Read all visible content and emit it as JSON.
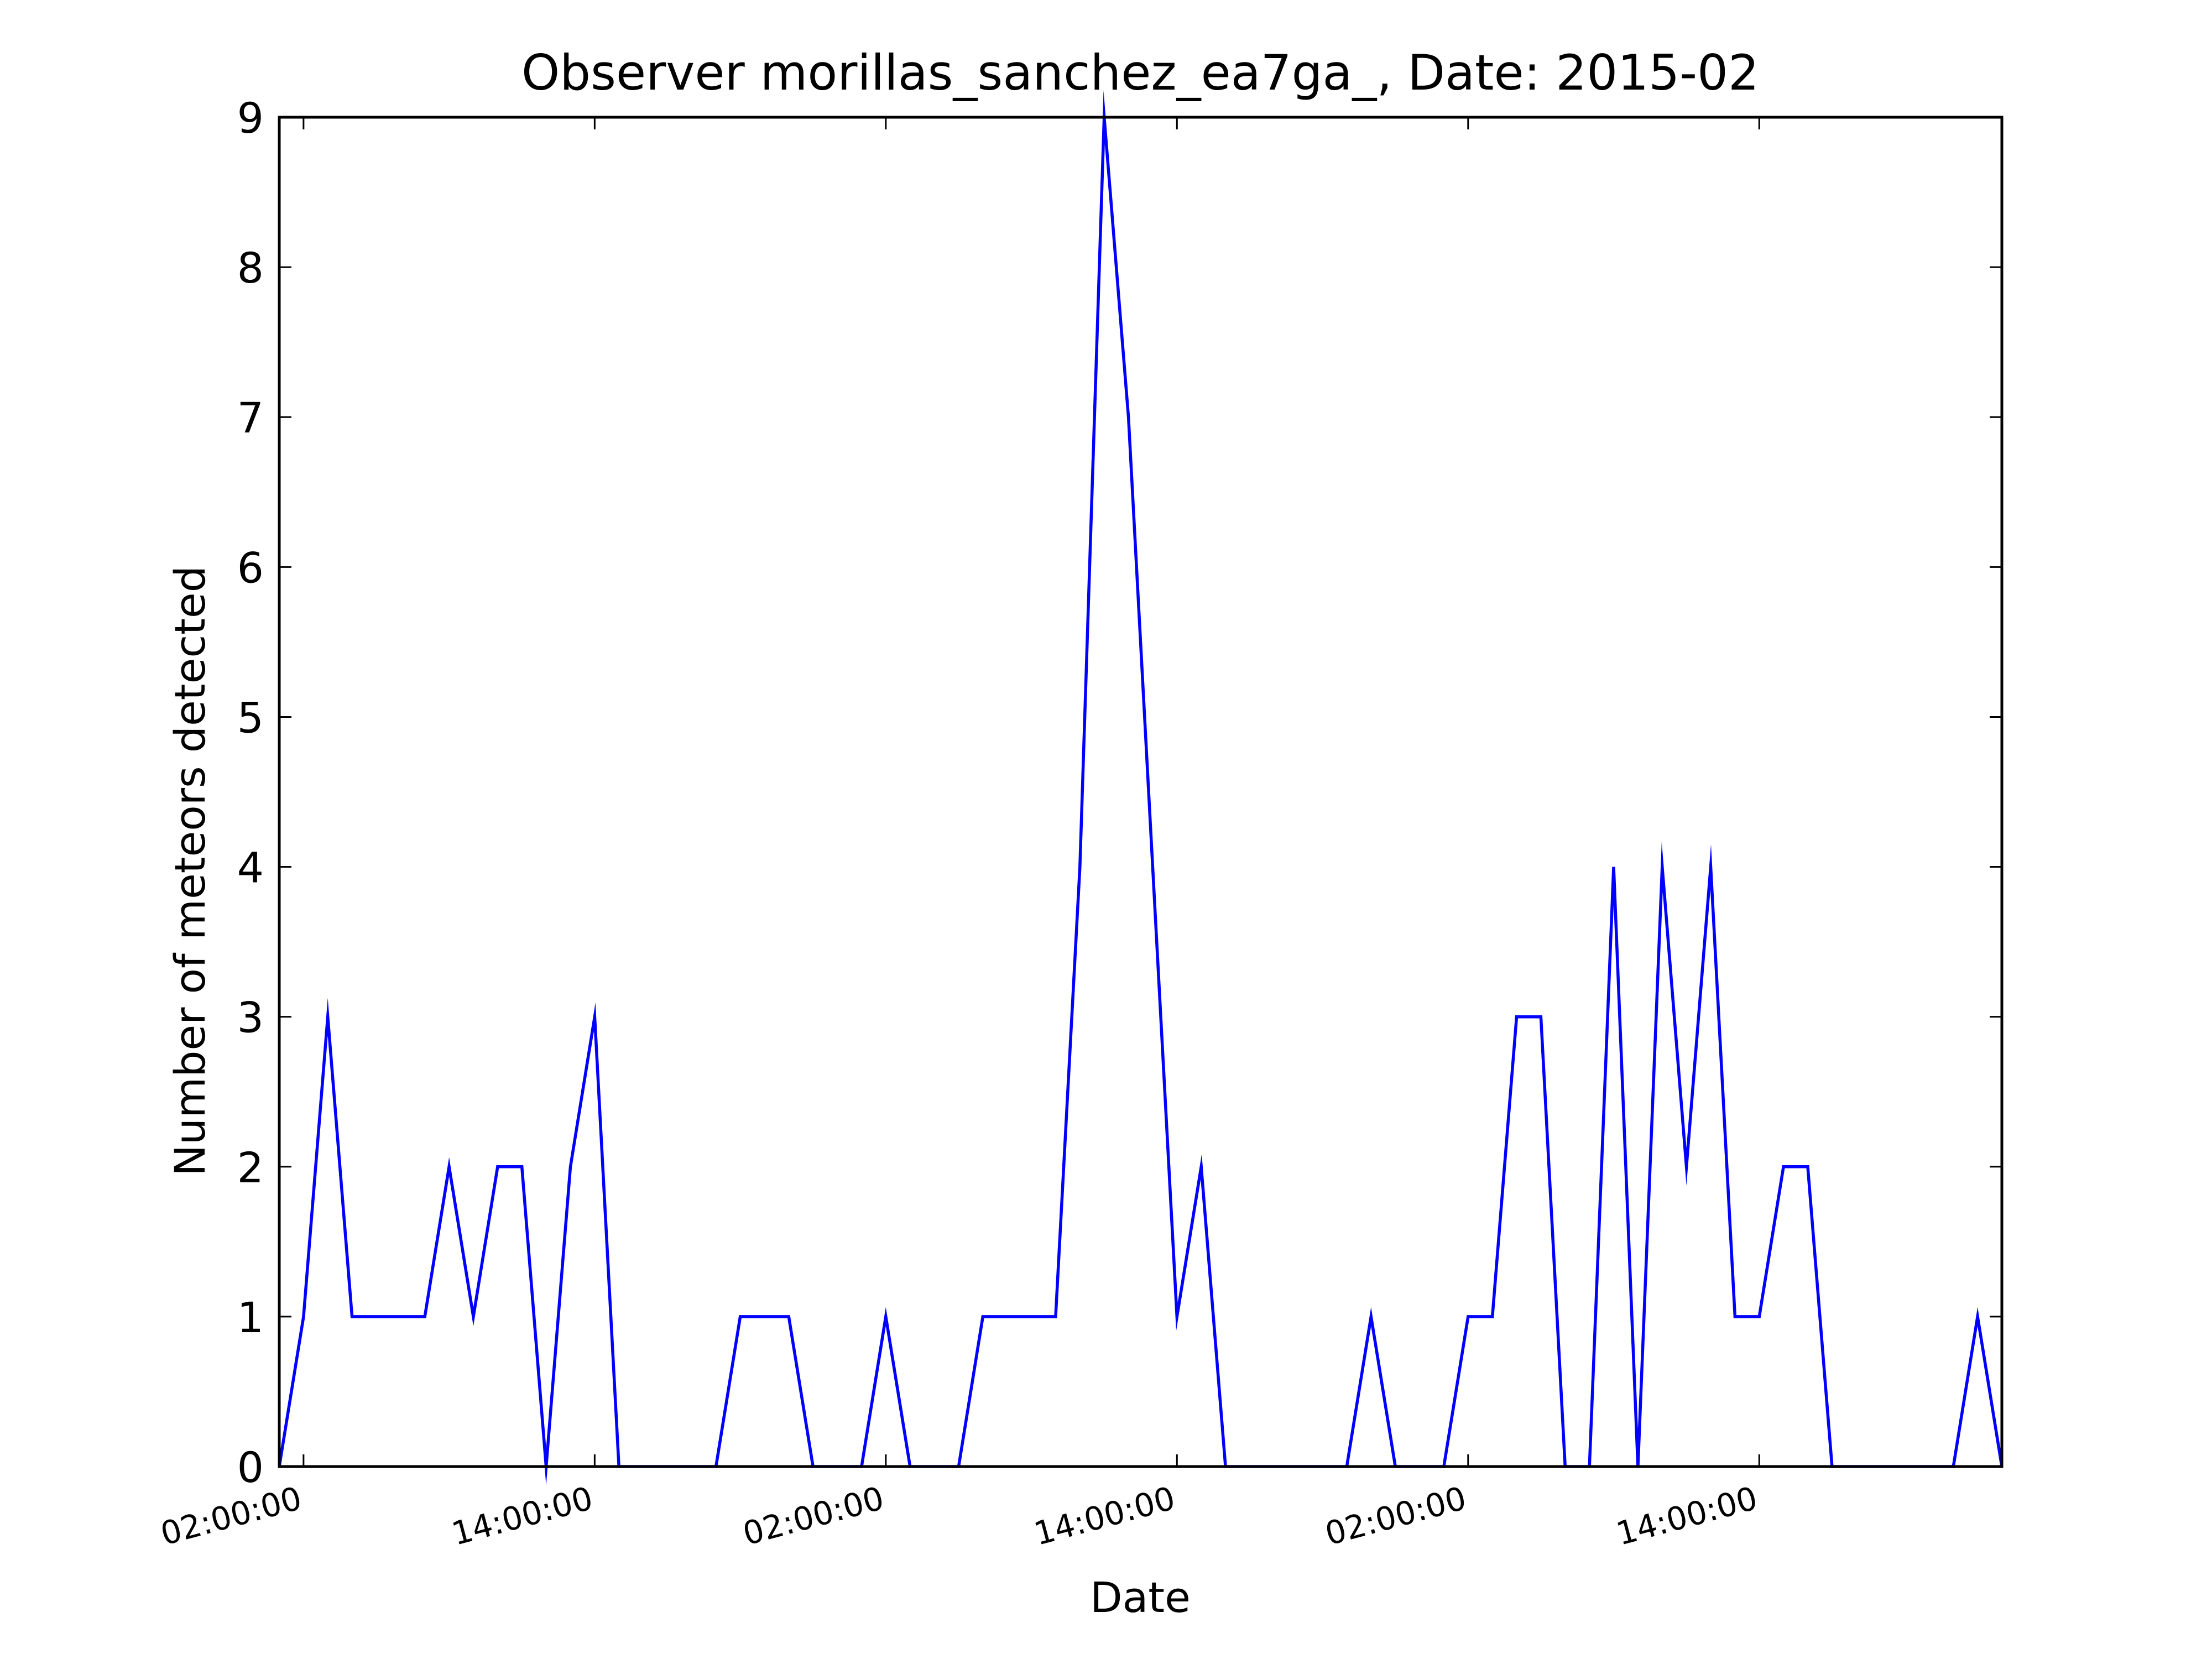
{
  "chart_data": {
    "type": "line",
    "title": "Observer morillas_sanchez_ea7ga_, Date: 2015-02",
    "xlabel": "Date",
    "ylabel": "Number of meteors detected",
    "series": [
      {
        "color": "#0000ff",
        "points": [
          [
            "2015-02-01 01:00",
            0
          ],
          [
            "2015-02-01 02:00",
            1
          ],
          [
            "2015-02-01 03:00",
            3
          ],
          [
            "2015-02-01 04:00",
            1
          ],
          [
            "2015-02-01 05:00",
            1
          ],
          [
            "2015-02-01 06:00",
            1
          ],
          [
            "2015-02-01 07:00",
            1
          ],
          [
            "2015-02-01 08:00",
            2
          ],
          [
            "2015-02-01 09:00",
            1
          ],
          [
            "2015-02-01 10:00",
            2
          ],
          [
            "2015-02-01 11:00",
            2
          ],
          [
            "2015-02-01 12:00",
            0
          ],
          [
            "2015-02-01 13:00",
            2
          ],
          [
            "2015-02-01 14:00",
            3
          ],
          [
            "2015-02-01 15:00",
            0
          ],
          [
            "2015-02-01 16:00",
            0
          ],
          [
            "2015-02-01 17:00",
            0
          ],
          [
            "2015-02-01 18:00",
            0
          ],
          [
            "2015-02-01 19:00",
            0
          ],
          [
            "2015-02-01 20:00",
            1
          ],
          [
            "2015-02-01 21:00",
            1
          ],
          [
            "2015-02-01 22:00",
            1
          ],
          [
            "2015-02-01 23:00",
            0
          ],
          [
            "2015-02-02 00:00",
            0
          ],
          [
            "2015-02-02 01:00",
            0
          ],
          [
            "2015-02-02 02:00",
            1
          ],
          [
            "2015-02-02 03:00",
            0
          ],
          [
            "2015-02-02 04:00",
            0
          ],
          [
            "2015-02-02 05:00",
            0
          ],
          [
            "2015-02-02 06:00",
            1
          ],
          [
            "2015-02-02 07:00",
            1
          ],
          [
            "2015-02-02 08:00",
            1
          ],
          [
            "2015-02-02 09:00",
            1
          ],
          [
            "2015-02-02 10:00",
            4
          ],
          [
            "2015-02-02 11:00",
            9
          ],
          [
            "2015-02-02 12:00",
            7
          ],
          [
            "2015-02-02 13:00",
            4
          ],
          [
            "2015-02-02 14:00",
            1
          ],
          [
            "2015-02-02 15:00",
            2
          ],
          [
            "2015-02-02 16:00",
            0
          ],
          [
            "2015-02-02 17:00",
            0
          ],
          [
            "2015-02-02 18:00",
            0
          ],
          [
            "2015-02-02 19:00",
            0
          ],
          [
            "2015-02-02 20:00",
            0
          ],
          [
            "2015-02-02 21:00",
            0
          ],
          [
            "2015-02-02 22:00",
            1
          ],
          [
            "2015-02-02 23:00",
            0
          ],
          [
            "2015-02-03 00:00",
            0
          ],
          [
            "2015-02-03 01:00",
            0
          ],
          [
            "2015-02-03 02:00",
            1
          ],
          [
            "2015-02-03 03:00",
            1
          ],
          [
            "2015-02-03 04:00",
            3
          ],
          [
            "2015-02-03 05:00",
            3
          ],
          [
            "2015-02-03 06:00",
            0
          ],
          [
            "2015-02-03 07:00",
            0
          ],
          [
            "2015-02-03 08:00",
            4
          ],
          [
            "2015-02-03 09:00",
            0
          ],
          [
            "2015-02-03 10:00",
            4
          ],
          [
            "2015-02-03 11:00",
            2
          ],
          [
            "2015-02-03 12:00",
            4
          ],
          [
            "2015-02-03 13:00",
            1
          ],
          [
            "2015-02-03 14:00",
            1
          ],
          [
            "2015-02-03 15:00",
            2
          ],
          [
            "2015-02-03 16:00",
            2
          ],
          [
            "2015-02-03 17:00",
            0
          ],
          [
            "2015-02-03 18:00",
            0
          ],
          [
            "2015-02-03 19:00",
            0
          ],
          [
            "2015-02-03 20:00",
            0
          ],
          [
            "2015-02-03 21:00",
            0
          ],
          [
            "2015-02-03 22:00",
            0
          ],
          [
            "2015-02-03 23:00",
            1
          ],
          [
            "2015-02-04 00:00",
            0
          ]
        ]
      }
    ],
    "xlim": [
      "2015-02-01 01:00",
      "2015-02-04 00:00"
    ],
    "ylim": [
      0,
      9
    ],
    "xticks": [
      {
        "value": "2015-02-01 02:00",
        "label": "02:00:00"
      },
      {
        "value": "2015-02-01 14:00",
        "label": "14:00:00"
      },
      {
        "value": "2015-02-02 02:00",
        "label": "02:00:00"
      },
      {
        "value": "2015-02-02 14:00",
        "label": "14:00:00"
      },
      {
        "value": "2015-02-03 02:00",
        "label": "02:00:00"
      },
      {
        "value": "2015-02-03 14:00",
        "label": "14:00:00"
      }
    ],
    "yticks": [
      0,
      1,
      2,
      3,
      4,
      5,
      6,
      7,
      8,
      9
    ],
    "grid": false,
    "legend": false
  }
}
